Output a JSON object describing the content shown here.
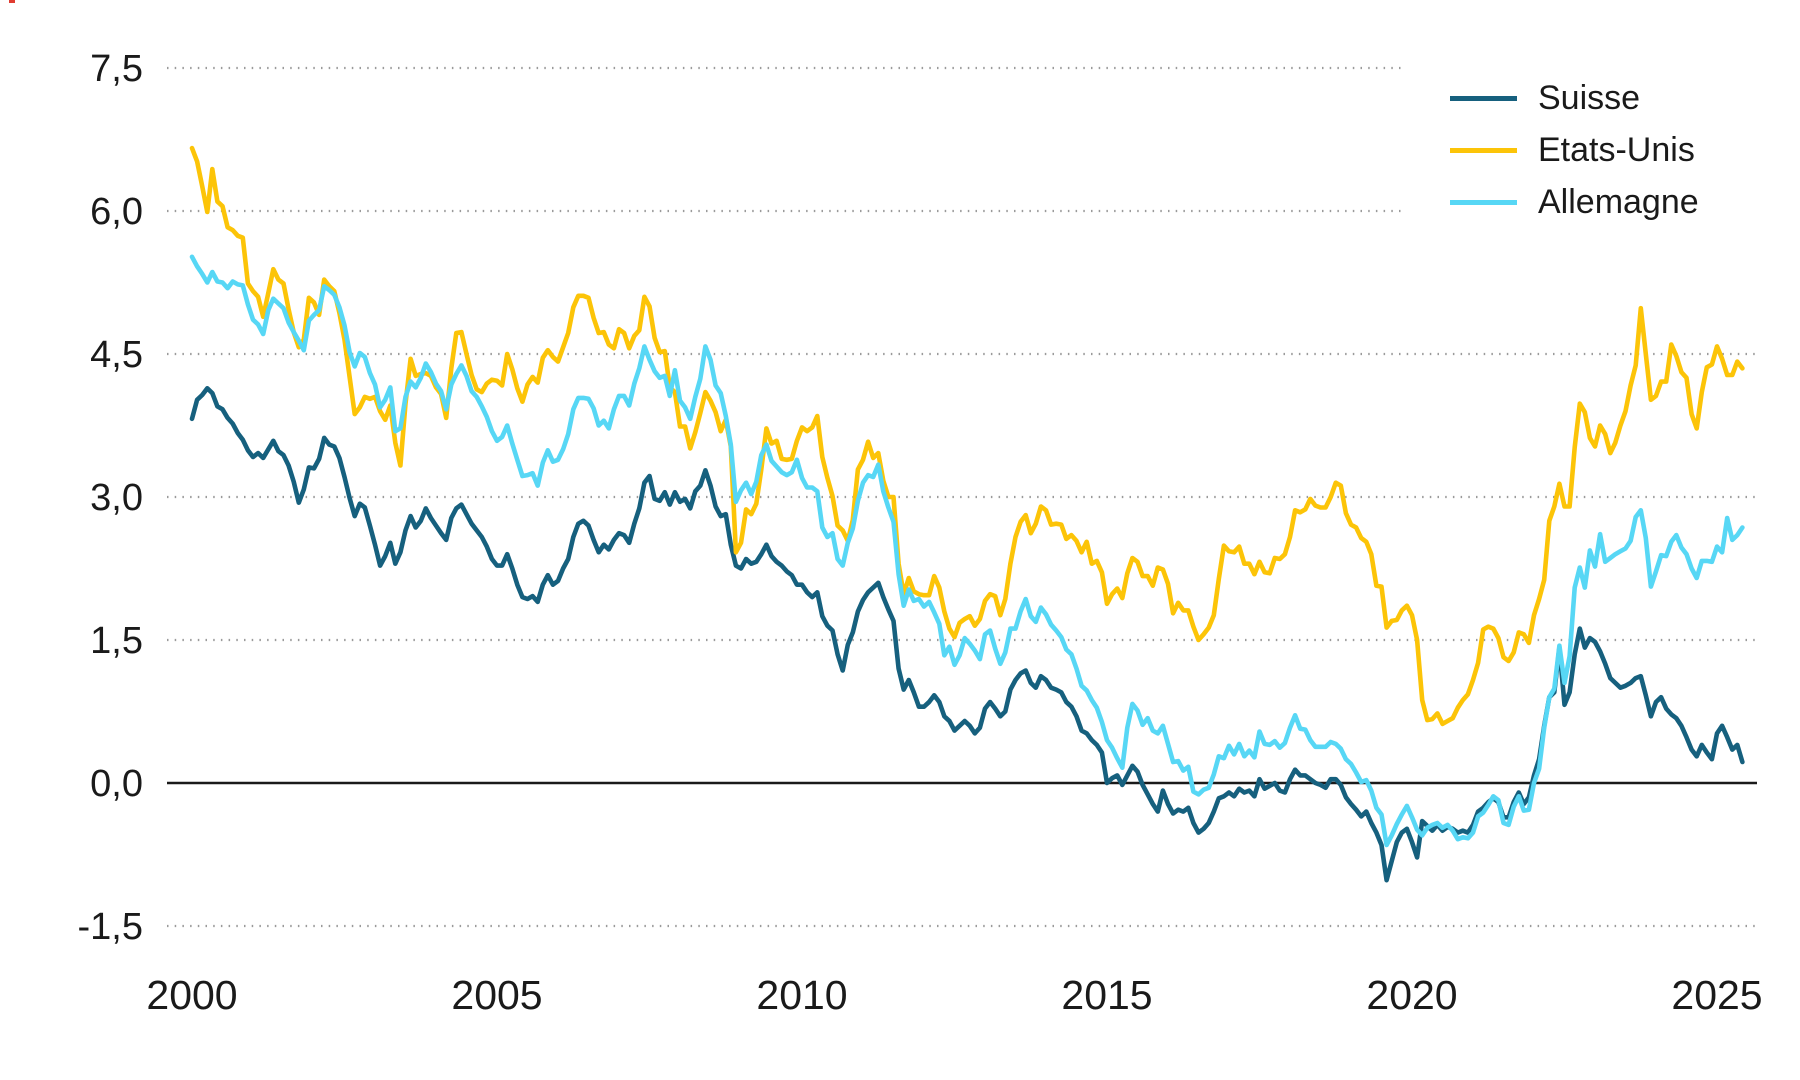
{
  "page": {
    "background": "#ffffff"
  },
  "legend": {
    "items": [
      {
        "label": "Suisse",
        "color": "#16607e"
      },
      {
        "label": "Etats-Unis",
        "color": "#fcc408"
      },
      {
        "label": "Allemagne",
        "color": "#57d7f5"
      }
    ]
  },
  "chart_data": {
    "type": "line",
    "title": "",
    "xlabel": "",
    "ylabel": "",
    "grid": "horizontal-dotted",
    "legend_position": "top-right",
    "x_start": "2000-01",
    "x_end": "2025-06",
    "points_per_year": 12,
    "xlim_years": [
      1999.6,
      2025.7
    ],
    "ylim": [
      -1.5,
      7.5
    ],
    "yticks": [
      {
        "label": "7,5",
        "value": 7.5,
        "full": false
      },
      {
        "label": "6,0",
        "value": 6.0,
        "full": false
      },
      {
        "label": "4,5",
        "value": 4.5,
        "full": true
      },
      {
        "label": "3,0",
        "value": 3.0,
        "full": true
      },
      {
        "label": "1,5",
        "value": 1.5,
        "full": true
      },
      {
        "label": "0,0",
        "value": 0.0,
        "full": true
      },
      {
        "label": "-1,5",
        "value": -1.5,
        "full": true
      }
    ],
    "xticks": [
      {
        "label": "2000",
        "value": 2000
      },
      {
        "label": "2005",
        "value": 2005
      },
      {
        "label": "2010",
        "value": 2010
      },
      {
        "label": "2015",
        "value": 2015
      },
      {
        "label": "2020",
        "value": 2020
      },
      {
        "label": "2025",
        "value": 2025
      }
    ],
    "series": [
      {
        "name": "Suisse",
        "color": "#16607e",
        "values": [
          3.82,
          4.02,
          4.07,
          4.14,
          4.09,
          3.95,
          3.92,
          3.83,
          3.77,
          3.67,
          3.6,
          3.49,
          3.42,
          3.46,
          3.41,
          3.5,
          3.59,
          3.48,
          3.44,
          3.33,
          3.16,
          2.94,
          3.08,
          3.31,
          3.3,
          3.4,
          3.62,
          3.55,
          3.53,
          3.41,
          3.21,
          2.99,
          2.8,
          2.93,
          2.89,
          2.7,
          2.5,
          2.28,
          2.38,
          2.52,
          2.3,
          2.42,
          2.65,
          2.8,
          2.68,
          2.75,
          2.88,
          2.78,
          2.7,
          2.62,
          2.55,
          2.78,
          2.88,
          2.92,
          2.82,
          2.72,
          2.65,
          2.58,
          2.48,
          2.35,
          2.28,
          2.28,
          2.4,
          2.25,
          2.08,
          1.95,
          1.93,
          1.96,
          1.9,
          2.08,
          2.18,
          2.08,
          2.12,
          2.25,
          2.35,
          2.58,
          2.72,
          2.75,
          2.7,
          2.55,
          2.42,
          2.5,
          2.45,
          2.55,
          2.62,
          2.6,
          2.52,
          2.72,
          2.88,
          3.15,
          3.22,
          2.98,
          2.96,
          3.05,
          2.92,
          3.05,
          2.95,
          2.98,
          2.88,
          3.06,
          3.12,
          3.28,
          3.12,
          2.9,
          2.8,
          2.82,
          2.5,
          2.28,
          2.25,
          2.35,
          2.3,
          2.32,
          2.4,
          2.5,
          2.38,
          2.32,
          2.28,
          2.22,
          2.18,
          2.08,
          2.08,
          2.0,
          1.95,
          2.0,
          1.75,
          1.65,
          1.6,
          1.35,
          1.18,
          1.45,
          1.58,
          1.8,
          1.92,
          2.0,
          2.05,
          2.1,
          1.95,
          1.82,
          1.7,
          1.2,
          0.98,
          1.08,
          0.95,
          0.8,
          0.8,
          0.85,
          0.92,
          0.85,
          0.7,
          0.65,
          0.55,
          0.6,
          0.65,
          0.6,
          0.52,
          0.58,
          0.78,
          0.85,
          0.78,
          0.7,
          0.75,
          0.98,
          1.08,
          1.15,
          1.18,
          1.05,
          1.0,
          1.12,
          1.08,
          1.0,
          0.98,
          0.95,
          0.85,
          0.8,
          0.7,
          0.55,
          0.52,
          0.45,
          0.4,
          0.32,
          0.0,
          0.05,
          0.08,
          -0.02,
          0.08,
          0.18,
          0.12,
          -0.02,
          -0.12,
          -0.22,
          -0.3,
          -0.08,
          -0.22,
          -0.32,
          -0.28,
          -0.3,
          -0.26,
          -0.42,
          -0.52,
          -0.48,
          -0.42,
          -0.3,
          -0.16,
          -0.14,
          -0.1,
          -0.14,
          -0.06,
          -0.1,
          -0.08,
          -0.14,
          0.04,
          -0.06,
          -0.03,
          0.0,
          -0.08,
          -0.1,
          0.04,
          0.14,
          0.08,
          0.08,
          0.04,
          0.0,
          -0.02,
          -0.05,
          0.04,
          0.04,
          -0.02,
          -0.15,
          -0.22,
          -0.28,
          -0.35,
          -0.3,
          -0.42,
          -0.52,
          -0.65,
          -1.02,
          -0.82,
          -0.62,
          -0.52,
          -0.48,
          -0.62,
          -0.78,
          -0.4,
          -0.45,
          -0.5,
          -0.44,
          -0.5,
          -0.46,
          -0.48,
          -0.52,
          -0.5,
          -0.52,
          -0.44,
          -0.3,
          -0.26,
          -0.2,
          -0.16,
          -0.2,
          -0.36,
          -0.36,
          -0.2,
          -0.1,
          -0.22,
          -0.15,
          0.08,
          0.25,
          0.6,
          0.9,
          0.95,
          1.42,
          0.82,
          0.95,
          1.35,
          1.62,
          1.42,
          1.52,
          1.48,
          1.38,
          1.25,
          1.1,
          1.05,
          1.0,
          1.02,
          1.05,
          1.1,
          1.12,
          0.92,
          0.7,
          0.85,
          0.9,
          0.78,
          0.72,
          0.68,
          0.6,
          0.48,
          0.35,
          0.28,
          0.4,
          0.32,
          0.25,
          0.52,
          0.6,
          0.48,
          0.35,
          0.4,
          0.22
        ]
      },
      {
        "name": "Etats-Unis",
        "color": "#fcc408",
        "values": [
          6.66,
          6.52,
          6.26,
          5.99,
          6.44,
          6.1,
          6.05,
          5.83,
          5.8,
          5.74,
          5.72,
          5.24,
          5.16,
          5.1,
          4.89,
          5.14,
          5.39,
          5.28,
          5.24,
          4.97,
          4.73,
          4.57,
          4.65,
          5.09,
          5.04,
          4.91,
          5.28,
          5.21,
          5.16,
          4.93,
          4.65,
          4.26,
          3.87,
          3.94,
          4.05,
          4.03,
          4.05,
          3.9,
          3.81,
          3.96,
          3.57,
          3.33,
          3.98,
          4.45,
          4.27,
          4.29,
          4.3,
          4.27,
          4.15,
          4.08,
          3.83,
          4.35,
          4.72,
          4.73,
          4.5,
          4.28,
          4.13,
          4.1,
          4.19,
          4.23,
          4.22,
          4.17,
          4.5,
          4.34,
          4.14,
          4.0,
          4.18,
          4.26,
          4.2,
          4.46,
          4.54,
          4.47,
          4.42,
          4.57,
          4.72,
          4.99,
          5.11,
          5.11,
          5.09,
          4.88,
          4.72,
          4.73,
          4.6,
          4.56,
          4.76,
          4.72,
          4.56,
          4.69,
          4.75,
          5.1,
          5.0,
          4.67,
          4.52,
          4.53,
          4.15,
          4.1,
          3.74,
          3.74,
          3.51,
          3.68,
          3.88,
          4.1,
          4.01,
          3.89,
          3.69,
          3.81,
          3.53,
          2.42,
          2.52,
          2.87,
          2.82,
          2.93,
          3.29,
          3.72,
          3.56,
          3.59,
          3.4,
          3.39,
          3.4,
          3.59,
          3.73,
          3.69,
          3.73,
          3.85,
          3.42,
          3.2,
          3.01,
          2.7,
          2.65,
          2.54,
          2.76,
          3.29,
          3.39,
          3.58,
          3.41,
          3.46,
          3.17,
          3.0,
          3.0,
          2.3,
          1.98,
          2.15,
          2.01,
          1.98,
          1.97,
          1.97,
          2.17,
          2.05,
          1.8,
          1.62,
          1.53,
          1.68,
          1.72,
          1.75,
          1.65,
          1.72,
          1.91,
          1.98,
          1.96,
          1.76,
          1.93,
          2.3,
          2.58,
          2.74,
          2.81,
          2.62,
          2.72,
          2.9,
          2.86,
          2.71,
          2.72,
          2.71,
          2.56,
          2.6,
          2.54,
          2.42,
          2.53,
          2.3,
          2.33,
          2.21,
          1.88,
          1.98,
          2.04,
          1.94,
          2.2,
          2.36,
          2.32,
          2.17,
          2.17,
          2.07,
          2.26,
          2.24,
          2.09,
          1.78,
          1.89,
          1.81,
          1.81,
          1.64,
          1.5,
          1.56,
          1.63,
          1.76,
          2.14,
          2.49,
          2.43,
          2.42,
          2.48,
          2.3,
          2.3,
          2.19,
          2.32,
          2.21,
          2.2,
          2.36,
          2.35,
          2.4,
          2.58,
          2.86,
          2.84,
          2.87,
          2.98,
          2.91,
          2.89,
          2.89,
          3.0,
          3.15,
          3.12,
          2.83,
          2.71,
          2.68,
          2.57,
          2.53,
          2.4,
          2.07,
          2.06,
          1.63,
          1.7,
          1.71,
          1.81,
          1.86,
          1.76,
          1.5,
          0.87,
          0.66,
          0.67,
          0.73,
          0.62,
          0.65,
          0.68,
          0.79,
          0.87,
          0.93,
          1.08,
          1.26,
          1.61,
          1.64,
          1.62,
          1.52,
          1.32,
          1.28,
          1.37,
          1.58,
          1.56,
          1.47,
          1.76,
          1.93,
          2.13,
          2.75,
          2.9,
          3.14,
          2.9,
          2.9,
          3.52,
          3.98,
          3.89,
          3.62,
          3.53,
          3.75,
          3.66,
          3.46,
          3.57,
          3.75,
          3.9,
          4.17,
          4.38,
          4.98,
          4.5,
          4.02,
          4.06,
          4.21,
          4.21,
          4.6,
          4.48,
          4.31,
          4.25,
          3.87,
          3.72,
          4.1,
          4.36,
          4.39,
          4.58,
          4.45,
          4.28,
          4.28,
          4.42,
          4.35
        ]
      },
      {
        "name": "Allemagne",
        "color": "#57d7f5",
        "values": [
          5.52,
          5.42,
          5.34,
          5.25,
          5.36,
          5.26,
          5.25,
          5.19,
          5.26,
          5.23,
          5.22,
          5.02,
          4.86,
          4.81,
          4.71,
          4.96,
          5.08,
          5.03,
          4.98,
          4.83,
          4.73,
          4.64,
          4.54,
          4.85,
          4.91,
          4.96,
          5.21,
          5.17,
          5.12,
          4.99,
          4.8,
          4.52,
          4.37,
          4.51,
          4.47,
          4.3,
          4.18,
          3.94,
          4.02,
          4.15,
          3.69,
          3.72,
          4.05,
          4.21,
          4.15,
          4.25,
          4.4,
          4.31,
          4.19,
          4.11,
          3.92,
          4.18,
          4.29,
          4.38,
          4.27,
          4.11,
          4.05,
          3.95,
          3.84,
          3.69,
          3.59,
          3.63,
          3.75,
          3.56,
          3.39,
          3.22,
          3.23,
          3.25,
          3.12,
          3.36,
          3.49,
          3.37,
          3.39,
          3.5,
          3.66,
          3.92,
          4.04,
          4.04,
          4.03,
          3.93,
          3.75,
          3.8,
          3.72,
          3.92,
          4.06,
          4.06,
          3.96,
          4.19,
          4.35,
          4.58,
          4.44,
          4.32,
          4.25,
          4.27,
          4.06,
          4.33,
          4.01,
          3.94,
          3.82,
          4.05,
          4.24,
          4.58,
          4.44,
          4.17,
          4.09,
          3.85,
          3.55,
          2.95,
          3.07,
          3.15,
          3.03,
          3.16,
          3.44,
          3.55,
          3.38,
          3.32,
          3.26,
          3.23,
          3.26,
          3.39,
          3.2,
          3.1,
          3.1,
          3.06,
          2.68,
          2.58,
          2.62,
          2.35,
          2.28,
          2.52,
          2.67,
          2.96,
          3.15,
          3.23,
          3.21,
          3.34,
          3.06,
          2.89,
          2.74,
          2.19,
          1.86,
          2.03,
          1.91,
          1.93,
          1.85,
          1.9,
          1.79,
          1.67,
          1.34,
          1.43,
          1.24,
          1.34,
          1.52,
          1.46,
          1.39,
          1.3,
          1.56,
          1.6,
          1.41,
          1.25,
          1.37,
          1.62,
          1.62,
          1.8,
          1.93,
          1.75,
          1.69,
          1.84,
          1.77,
          1.66,
          1.6,
          1.53,
          1.4,
          1.35,
          1.2,
          1.02,
          0.97,
          0.87,
          0.79,
          0.64,
          0.45,
          0.37,
          0.26,
          0.16,
          0.58,
          0.83,
          0.76,
          0.61,
          0.68,
          0.55,
          0.52,
          0.6,
          0.41,
          0.22,
          0.23,
          0.13,
          0.17,
          -0.09,
          -0.12,
          -0.07,
          -0.05,
          0.09,
          0.28,
          0.26,
          0.39,
          0.3,
          0.41,
          0.28,
          0.34,
          0.27,
          0.54,
          0.41,
          0.4,
          0.44,
          0.37,
          0.42,
          0.58,
          0.71,
          0.57,
          0.56,
          0.45,
          0.38,
          0.38,
          0.38,
          0.43,
          0.41,
          0.36,
          0.25,
          0.2,
          0.11,
          0.01,
          0.03,
          -0.08,
          -0.26,
          -0.33,
          -0.65,
          -0.55,
          -0.43,
          -0.33,
          -0.24,
          -0.36,
          -0.49,
          -0.55,
          -0.47,
          -0.44,
          -0.42,
          -0.47,
          -0.44,
          -0.5,
          -0.59,
          -0.57,
          -0.58,
          -0.52,
          -0.35,
          -0.31,
          -0.23,
          -0.14,
          -0.18,
          -0.42,
          -0.44,
          -0.25,
          -0.14,
          -0.29,
          -0.28,
          0.0,
          0.15,
          0.58,
          0.9,
          0.99,
          1.44,
          1.05,
          1.33,
          2.05,
          2.26,
          2.05,
          2.44,
          2.27,
          2.61,
          2.32,
          2.36,
          2.4,
          2.43,
          2.46,
          2.54,
          2.79,
          2.86,
          2.57,
          2.06,
          2.22,
          2.39,
          2.38,
          2.53,
          2.6,
          2.47,
          2.4,
          2.25,
          2.15,
          2.33,
          2.33,
          2.32,
          2.48,
          2.42,
          2.78,
          2.55,
          2.6,
          2.68
        ]
      }
    ],
    "style": {
      "line_width": 4.6,
      "gridline_color": "#9a9a9a",
      "zero_line_color": "#1a1a1a",
      "text_color": "#1a1a1a"
    }
  }
}
